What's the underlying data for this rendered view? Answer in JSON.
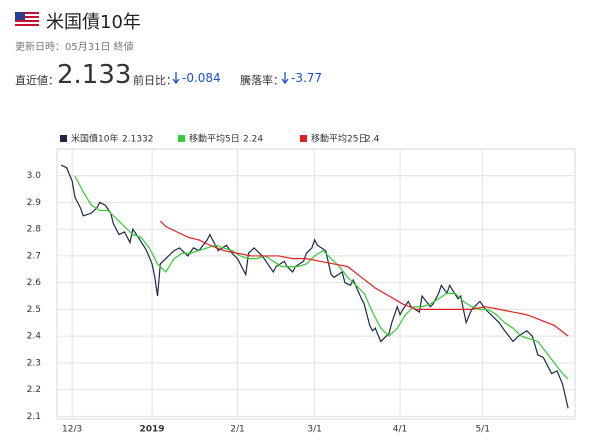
{
  "header": {
    "title": "米国債10年",
    "updated": "更新日時：05月31日 終値"
  },
  "quote": {
    "last_label": "直近値：",
    "last": 2.133,
    "change_label": "前日比：",
    "change": -0.084,
    "rate_label": "騰落率：",
    "rate": -3.77
  },
  "chart_data": {
    "type": "line",
    "xlim": [
      -5.5,
      182.5
    ],
    "ylim": [
      2.09,
      3.1
    ],
    "xticks": [
      {
        "value": 0,
        "label": "12/3"
      },
      {
        "value": 29,
        "label": "2019"
      },
      {
        "value": 60,
        "label": "2/1"
      },
      {
        "value": 88,
        "label": "3/1"
      },
      {
        "value": 119,
        "label": "4/1"
      },
      {
        "value": 149,
        "label": "5/1"
      }
    ],
    "yticks": [
      2.1,
      2.2,
      2.3,
      2.4,
      2.5,
      2.6,
      2.7,
      2.8,
      2.9,
      {
        "value": 3,
        "label": "3.0"
      }
    ],
    "grid": true,
    "series": [
      {
        "name": "米国債10年",
        "color": "#1c2a48",
        "legend_value": 2.1332,
        "x": [
          -4,
          -2,
          0,
          1,
          3,
          4,
          7,
          9,
          10,
          12,
          14,
          15,
          17,
          19,
          21,
          22,
          24,
          27,
          29,
          30,
          31,
          32,
          35,
          37,
          39,
          42,
          44,
          46,
          49,
          50,
          52,
          53,
          56,
          58,
          60,
          63,
          64,
          66,
          69,
          71,
          73,
          74,
          77,
          78,
          80,
          81,
          84,
          85,
          87,
          88,
          89,
          92,
          94,
          95,
          98,
          99,
          101,
          102,
          105,
          106,
          108,
          109,
          110,
          112,
          113,
          115,
          116,
          118,
          119,
          120,
          122,
          123,
          126,
          127,
          130,
          131,
          133,
          134,
          136,
          137,
          140,
          141,
          143,
          145,
          147,
          148,
          150,
          152,
          155,
          157,
          160,
          162,
          165,
          167,
          169,
          171,
          174,
          176,
          178,
          180
        ],
        "values": [
          3.04,
          3.03,
          2.98,
          2.92,
          2.88,
          2.85,
          2.86,
          2.88,
          2.9,
          2.89,
          2.86,
          2.82,
          2.78,
          2.79,
          2.75,
          2.8,
          2.77,
          2.72,
          2.67,
          2.62,
          2.55,
          2.67,
          2.7,
          2.72,
          2.73,
          2.7,
          2.73,
          2.72,
          2.76,
          2.78,
          2.74,
          2.72,
          2.74,
          2.71,
          2.69,
          2.63,
          2.71,
          2.73,
          2.7,
          2.67,
          2.64,
          2.66,
          2.68,
          2.66,
          2.64,
          2.66,
          2.68,
          2.71,
          2.73,
          2.76,
          2.74,
          2.72,
          2.63,
          2.62,
          2.64,
          2.6,
          2.59,
          2.61,
          2.54,
          2.52,
          2.44,
          2.42,
          2.43,
          2.38,
          2.39,
          2.41,
          2.45,
          2.51,
          2.48,
          2.5,
          2.53,
          2.51,
          2.49,
          2.55,
          2.51,
          2.52,
          2.56,
          2.59,
          2.56,
          2.59,
          2.54,
          2.55,
          2.45,
          2.5,
          2.52,
          2.53,
          2.5,
          2.48,
          2.45,
          2.42,
          2.38,
          2.4,
          2.42,
          2.4,
          2.33,
          2.32,
          2.26,
          2.27,
          2.22,
          2.13
        ]
      },
      {
        "name": "移動平均5日",
        "color": "#33cc33",
        "legend_value": 2.24,
        "x": [
          1,
          4,
          7,
          10,
          13,
          16,
          19,
          22,
          25,
          28,
          31,
          34,
          37,
          40,
          43,
          46,
          49,
          52,
          55,
          58,
          61,
          64,
          67,
          70,
          73,
          76,
          79,
          82,
          85,
          88,
          91,
          94,
          97,
          100,
          103,
          106,
          109,
          112,
          115,
          118,
          121,
          124,
          127,
          130,
          133,
          136,
          139,
          142,
          145,
          148,
          151,
          154,
          157,
          160,
          163,
          166,
          169,
          172,
          175,
          178,
          180
        ],
        "values": [
          3.0,
          2.94,
          2.89,
          2.87,
          2.87,
          2.84,
          2.81,
          2.78,
          2.77,
          2.73,
          2.67,
          2.64,
          2.69,
          2.71,
          2.71,
          2.72,
          2.73,
          2.74,
          2.73,
          2.72,
          2.7,
          2.69,
          2.69,
          2.7,
          2.68,
          2.66,
          2.66,
          2.66,
          2.67,
          2.7,
          2.72,
          2.69,
          2.66,
          2.62,
          2.59,
          2.56,
          2.49,
          2.43,
          2.4,
          2.43,
          2.48,
          2.51,
          2.51,
          2.52,
          2.54,
          2.56,
          2.56,
          2.53,
          2.51,
          2.5,
          2.5,
          2.48,
          2.45,
          2.43,
          2.4,
          2.39,
          2.38,
          2.34,
          2.3,
          2.26,
          2.24
        ]
      },
      {
        "name": "移動平均25日",
        "color": "#e02020",
        "legend_value": 2.4,
        "x": [
          32,
          34,
          38,
          42,
          46,
          50,
          55,
          60,
          65,
          70,
          75,
          80,
          85,
          90,
          95,
          100,
          105,
          110,
          115,
          120,
          125,
          130,
          135,
          140,
          145,
          150,
          155,
          160,
          165,
          170,
          175,
          180
        ],
        "values": [
          2.83,
          2.81,
          2.79,
          2.77,
          2.76,
          2.74,
          2.72,
          2.71,
          2.7,
          2.7,
          2.7,
          2.69,
          2.69,
          2.68,
          2.67,
          2.66,
          2.62,
          2.58,
          2.55,
          2.52,
          2.5,
          2.5,
          2.5,
          2.5,
          2.5,
          2.51,
          2.5,
          2.49,
          2.48,
          2.46,
          2.44,
          2.4
        ]
      }
    ]
  }
}
